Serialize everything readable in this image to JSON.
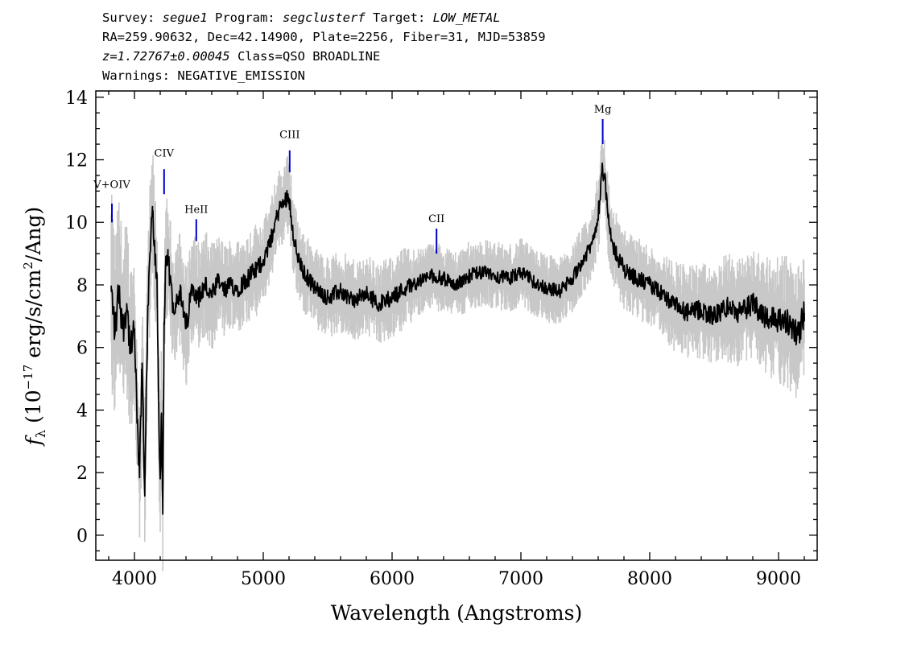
{
  "header": {
    "line1": {
      "survey_label": "Survey: ",
      "survey": "segue1",
      "program_label": " Program: ",
      "program": "segclusterf",
      "target_label": " Target: ",
      "target": "LOW_METAL"
    },
    "line2": "RA=259.90632, Dec=42.14900, Plate=2256, Fiber=31, MJD=53859",
    "line3": {
      "z_text": "z=1.72767±0.00045",
      "class_text": " Class=QSO BROADLINE"
    },
    "line4": "Warnings: NEGATIVE_EMISSION"
  },
  "chart_data": {
    "type": "line",
    "xlabel": "Wavelength (Angstroms)",
    "ylabel_parts": {
      "f": "f",
      "sub": "λ",
      "pre": " (10",
      "exp": "−17",
      "mid": " erg/s/cm",
      "exp2": "2",
      "post": "/Ang)"
    },
    "xlim": [
      3700,
      9300
    ],
    "ylim": [
      -0.8,
      14.2
    ],
    "x_ticks": [
      4000,
      5000,
      6000,
      7000,
      8000,
      9000
    ],
    "x_tick_labels": [
      "4000",
      "5000",
      "6000",
      "7000",
      "8000",
      "9000"
    ],
    "y_ticks": [
      0,
      2,
      4,
      6,
      8,
      10,
      12,
      14
    ],
    "y_tick_labels": [
      "0",
      "2",
      "4",
      "6",
      "8",
      "10",
      "12",
      "14"
    ],
    "series": [
      {
        "role": "flux",
        "color": "#000000",
        "x": [
          3820,
          3850,
          3880,
          3910,
          3940,
          3970,
          4000,
          4020,
          4040,
          4060,
          4080,
          4100,
          4120,
          4140,
          4160,
          4175,
          4190,
          4200,
          4210,
          4220,
          4230,
          4245,
          4260,
          4300,
          4350,
          4400,
          4450,
          4500,
          4550,
          4600,
          4650,
          4700,
          4750,
          4800,
          4850,
          4900,
          4950,
          5000,
          5050,
          5100,
          5130,
          5160,
          5190,
          5210,
          5230,
          5260,
          5300,
          5350,
          5400,
          5500,
          5600,
          5700,
          5800,
          5900,
          6000,
          6100,
          6200,
          6300,
          6400,
          6500,
          6600,
          6700,
          6800,
          6900,
          7000,
          7100,
          7200,
          7300,
          7400,
          7450,
          7500,
          7550,
          7580,
          7610,
          7630,
          7650,
          7670,
          7700,
          7750,
          7800,
          7900,
          8000,
          8100,
          8200,
          8300,
          8400,
          8500,
          8600,
          8700,
          8800,
          8900,
          9000,
          9050,
          9100,
          9150,
          9200
        ],
        "y": [
          7.8,
          6.5,
          7.9,
          6.6,
          7.4,
          5.8,
          6.6,
          3.6,
          2.0,
          5.5,
          1.4,
          6.4,
          9.0,
          10.3,
          8.9,
          8.3,
          3.5,
          1.8,
          3.9,
          0.7,
          6.8,
          8.6,
          8.8,
          7.3,
          7.8,
          6.6,
          8.0,
          7.6,
          8.0,
          7.6,
          8.1,
          7.8,
          8.0,
          7.9,
          8.1,
          8.3,
          8.5,
          8.8,
          9.3,
          10.1,
          10.5,
          10.6,
          10.9,
          10.5,
          9.7,
          9.0,
          8.5,
          8.2,
          7.9,
          7.6,
          7.8,
          7.5,
          7.7,
          7.4,
          7.6,
          7.9,
          8.1,
          8.3,
          8.2,
          8.0,
          8.3,
          8.4,
          8.3,
          8.2,
          8.4,
          8.1,
          7.9,
          7.8,
          8.2,
          8.6,
          8.9,
          9.3,
          9.8,
          10.6,
          11.8,
          11.4,
          10.5,
          9.4,
          8.9,
          8.5,
          8.2,
          8.0,
          7.7,
          7.3,
          7.1,
          7.2,
          7.0,
          7.3,
          7.1,
          7.4,
          7.0,
          6.9,
          6.8,
          6.7,
          6.4,
          7.1
        ]
      },
      {
        "role": "error-envelope",
        "color": "#c8c8c8",
        "x": [
          3820,
          3850,
          3880,
          3910,
          3940,
          3970,
          4000,
          4020,
          4040,
          4060,
          4080,
          4100,
          4120,
          4140,
          4160,
          4175,
          4190,
          4200,
          4210,
          4220,
          4230,
          4245,
          4260,
          4300,
          4350,
          4400,
          4450,
          4500,
          4550,
          4600,
          4650,
          4700,
          4750,
          4800,
          4850,
          4900,
          4950,
          5000,
          5050,
          5100,
          5130,
          5160,
          5190,
          5210,
          5230,
          5260,
          5300,
          5350,
          5400,
          5500,
          5600,
          5700,
          5800,
          5900,
          6000,
          6100,
          6200,
          6300,
          6400,
          6500,
          6600,
          6700,
          6800,
          6900,
          7000,
          7100,
          7200,
          7300,
          7400,
          7450,
          7500,
          7550,
          7580,
          7610,
          7630,
          7650,
          7670,
          7700,
          7750,
          7800,
          7900,
          8000,
          8100,
          8200,
          8300,
          8400,
          8500,
          8600,
          8700,
          8800,
          8900,
          9000,
          9050,
          9100,
          9150,
          9200
        ],
        "y": [
          1.5,
          1.4,
          1.4,
          1.3,
          1.3,
          1.3,
          1.2,
          1.2,
          1.2,
          1.2,
          1.2,
          1.1,
          1.0,
          1.0,
          1.0,
          1.0,
          1.1,
          1.1,
          1.1,
          1.1,
          1.0,
          1.0,
          0.9,
          0.9,
          0.9,
          0.9,
          0.8,
          0.8,
          0.8,
          0.8,
          0.7,
          0.7,
          0.7,
          0.7,
          0.7,
          0.7,
          0.7,
          0.6,
          0.6,
          0.6,
          0.6,
          0.6,
          0.6,
          0.6,
          0.6,
          0.6,
          0.6,
          0.6,
          0.6,
          0.6,
          0.6,
          0.6,
          0.6,
          0.6,
          0.6,
          0.6,
          0.5,
          0.5,
          0.5,
          0.5,
          0.5,
          0.5,
          0.5,
          0.5,
          0.5,
          0.5,
          0.5,
          0.5,
          0.5,
          0.5,
          0.5,
          0.5,
          0.6,
          0.6,
          0.6,
          0.6,
          0.6,
          0.6,
          0.6,
          0.6,
          0.6,
          0.6,
          0.6,
          0.7,
          0.7,
          0.7,
          0.7,
          0.8,
          0.8,
          0.8,
          0.9,
          0.9,
          1.0,
          1.0,
          1.0,
          1.0
        ]
      }
    ],
    "emission_lines": [
      {
        "label": "V+OIV",
        "x": 3825,
        "y_bottom": 10.0,
        "y_top": 10.6,
        "label_y": 11.1
      },
      {
        "label": "CIV",
        "x": 4230,
        "y_bottom": 10.9,
        "y_top": 11.7,
        "label_y": 12.1
      },
      {
        "label": "HeII",
        "x": 4480,
        "y_bottom": 9.4,
        "y_top": 10.1,
        "label_y": 10.3
      },
      {
        "label": "CIII",
        "x": 5205,
        "y_bottom": 11.6,
        "y_top": 12.3,
        "label_y": 12.7
      },
      {
        "label": "CII",
        "x": 6345,
        "y_bottom": 9.0,
        "y_top": 9.8,
        "label_y": 10.0
      },
      {
        "label": "Mg",
        "x": 7635,
        "y_bottom": 12.5,
        "y_top": 13.3,
        "label_y": 13.5
      }
    ],
    "line_marker_color": "#0000cc",
    "grid": false
  }
}
